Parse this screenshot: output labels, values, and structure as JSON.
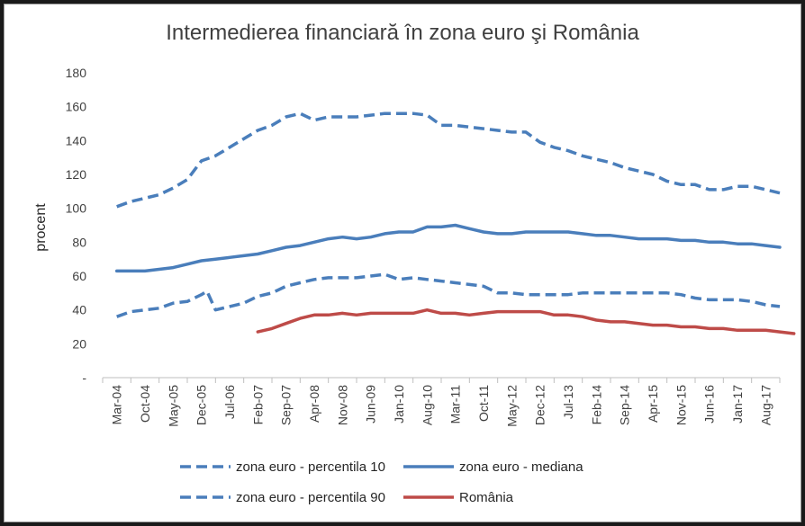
{
  "chart_data": {
    "type": "line",
    "title": "Intermedierea financiară în zona euro şi România",
    "xlabel": "",
    "ylabel": "procent",
    "ylim": [
      0,
      180
    ],
    "yticks": [
      {
        "value": 0,
        "label": "-"
      },
      {
        "value": 20,
        "label": "20"
      },
      {
        "value": 40,
        "label": "40"
      },
      {
        "value": 60,
        "label": "60"
      },
      {
        "value": 80,
        "label": "80"
      },
      {
        "value": 100,
        "label": "100"
      },
      {
        "value": 120,
        "label": "120"
      },
      {
        "value": 140,
        "label": "140"
      },
      {
        "value": 160,
        "label": "160"
      },
      {
        "value": 180,
        "label": "180"
      }
    ],
    "grid": false,
    "legend_position": "bottom",
    "x_labels": [
      {
        "index": 0,
        "label": "Mar-04"
      },
      {
        "index": 1,
        "label": "Oct-04"
      },
      {
        "index": 2,
        "label": "May-05"
      },
      {
        "index": 3,
        "label": "Dec-05"
      },
      {
        "index": 4,
        "label": "Jul-06"
      },
      {
        "index": 5,
        "label": "Feb-07"
      },
      {
        "index": 6,
        "label": "Sep-07"
      },
      {
        "index": 7,
        "label": "Apr-08"
      },
      {
        "index": 8,
        "label": "Nov-08"
      },
      {
        "index": 9,
        "label": "Jun-09"
      },
      {
        "index": 10,
        "label": "Jan-10"
      },
      {
        "index": 11,
        "label": "Aug-10"
      },
      {
        "index": 12,
        "label": "Mar-11"
      },
      {
        "index": 13,
        "label": "Oct-11"
      },
      {
        "index": 14,
        "label": "May-12"
      },
      {
        "index": 15,
        "label": "Dec-12"
      },
      {
        "index": 16,
        "label": "Jul-13"
      },
      {
        "index": 17,
        "label": "Feb-14"
      },
      {
        "index": 18,
        "label": "Sep-14"
      },
      {
        "index": 19,
        "label": "Apr-15"
      },
      {
        "index": 20,
        "label": "Nov-15"
      },
      {
        "index": 21,
        "label": "Jun-16"
      },
      {
        "index": 22,
        "label": "Jan-17"
      },
      {
        "index": 23,
        "label": "Aug-17"
      }
    ],
    "x_range": [
      0,
      24
    ],
    "series": [
      {
        "name": "zona euro - percentila 10",
        "color": "#4a7ebb",
        "dash": "dashed",
        "points": [
          [
            0,
            36
          ],
          [
            0.5,
            39
          ],
          [
            1,
            40
          ],
          [
            1.5,
            41
          ],
          [
            2,
            44
          ],
          [
            2.5,
            45
          ],
          [
            3,
            49
          ],
          [
            3.2,
            51
          ],
          [
            3.5,
            40
          ],
          [
            4,
            42
          ],
          [
            4.5,
            44
          ],
          [
            5,
            48
          ],
          [
            5.5,
            50
          ],
          [
            6,
            54
          ],
          [
            6.5,
            56
          ],
          [
            7,
            58
          ],
          [
            7.5,
            59
          ],
          [
            8,
            59
          ],
          [
            8.5,
            59
          ],
          [
            9,
            60
          ],
          [
            9.5,
            61
          ],
          [
            10,
            58
          ],
          [
            10.5,
            59
          ],
          [
            11,
            58
          ],
          [
            11.5,
            57
          ],
          [
            12,
            56
          ],
          [
            12.5,
            55
          ],
          [
            13,
            54
          ],
          [
            13.5,
            50
          ],
          [
            14,
            50
          ],
          [
            14.5,
            49
          ],
          [
            15,
            49
          ],
          [
            15.5,
            49
          ],
          [
            16,
            49
          ],
          [
            16.5,
            50
          ],
          [
            17,
            50
          ],
          [
            17.5,
            50
          ],
          [
            18,
            50
          ],
          [
            18.5,
            50
          ],
          [
            19,
            50
          ],
          [
            19.5,
            50
          ],
          [
            20,
            49
          ],
          [
            20.5,
            47
          ],
          [
            21,
            46
          ],
          [
            21.5,
            46
          ],
          [
            22,
            46
          ],
          [
            22.5,
            45
          ],
          [
            23,
            43
          ],
          [
            23.5,
            42
          ]
        ]
      },
      {
        "name": "zona euro - mediana",
        "color": "#4a7ebb",
        "dash": "solid",
        "points": [
          [
            0,
            63
          ],
          [
            0.5,
            63
          ],
          [
            1,
            63
          ],
          [
            1.5,
            64
          ],
          [
            2,
            65
          ],
          [
            2.5,
            67
          ],
          [
            3,
            69
          ],
          [
            3.5,
            70
          ],
          [
            4,
            71
          ],
          [
            4.5,
            72
          ],
          [
            5,
            73
          ],
          [
            5.5,
            75
          ],
          [
            6,
            77
          ],
          [
            6.5,
            78
          ],
          [
            7,
            80
          ],
          [
            7.5,
            82
          ],
          [
            8,
            83
          ],
          [
            8.5,
            82
          ],
          [
            9,
            83
          ],
          [
            9.5,
            85
          ],
          [
            10,
            86
          ],
          [
            10.5,
            86
          ],
          [
            11,
            89
          ],
          [
            11.5,
            89
          ],
          [
            12,
            90
          ],
          [
            12.5,
            88
          ],
          [
            13,
            86
          ],
          [
            13.5,
            85
          ],
          [
            14,
            85
          ],
          [
            14.5,
            86
          ],
          [
            15,
            86
          ],
          [
            15.5,
            86
          ],
          [
            16,
            86
          ],
          [
            16.5,
            85
          ],
          [
            17,
            84
          ],
          [
            17.5,
            84
          ],
          [
            18,
            83
          ],
          [
            18.5,
            82
          ],
          [
            19,
            82
          ],
          [
            19.5,
            82
          ],
          [
            20,
            81
          ],
          [
            20.5,
            81
          ],
          [
            21,
            80
          ],
          [
            21.5,
            80
          ],
          [
            22,
            79
          ],
          [
            22.5,
            79
          ],
          [
            23,
            78
          ],
          [
            23.5,
            77
          ]
        ]
      },
      {
        "name": "zona euro - percentila 90",
        "color": "#4a7ebb",
        "dash": "dashed",
        "points": [
          [
            0,
            101
          ],
          [
            0.5,
            104
          ],
          [
            1,
            106
          ],
          [
            1.5,
            108
          ],
          [
            2,
            112
          ],
          [
            2.5,
            117
          ],
          [
            3,
            128
          ],
          [
            3.5,
            131
          ],
          [
            4,
            136
          ],
          [
            4.5,
            141
          ],
          [
            5,
            146
          ],
          [
            5.5,
            149
          ],
          [
            6,
            154
          ],
          [
            6.5,
            156
          ],
          [
            7,
            152
          ],
          [
            7.5,
            154
          ],
          [
            8,
            154
          ],
          [
            8.5,
            154
          ],
          [
            9,
            155
          ],
          [
            9.5,
            156
          ],
          [
            10,
            156
          ],
          [
            10.5,
            156
          ],
          [
            11,
            155
          ],
          [
            11.5,
            149
          ],
          [
            12,
            149
          ],
          [
            12.5,
            148
          ],
          [
            13,
            147
          ],
          [
            13.5,
            146
          ],
          [
            14,
            145
          ],
          [
            14.5,
            145
          ],
          [
            15,
            139
          ],
          [
            15.5,
            136
          ],
          [
            16,
            134
          ],
          [
            16.5,
            131
          ],
          [
            17,
            129
          ],
          [
            17.5,
            127
          ],
          [
            18,
            124
          ],
          [
            18.5,
            122
          ],
          [
            19,
            120
          ],
          [
            19.5,
            116
          ],
          [
            20,
            114
          ],
          [
            20.5,
            114
          ],
          [
            21,
            111
          ],
          [
            21.5,
            111
          ],
          [
            22,
            113
          ],
          [
            22.5,
            113
          ],
          [
            23,
            111
          ],
          [
            23.5,
            109
          ]
        ]
      },
      {
        "name": "România",
        "color": "#be4b48",
        "dash": "solid",
        "points": [
          [
            5,
            27
          ],
          [
            5.5,
            29
          ],
          [
            6,
            32
          ],
          [
            6.5,
            35
          ],
          [
            7,
            37
          ],
          [
            7.5,
            37
          ],
          [
            8,
            38
          ],
          [
            8.5,
            37
          ],
          [
            9,
            38
          ],
          [
            9.5,
            38
          ],
          [
            10,
            38
          ],
          [
            10.5,
            38
          ],
          [
            11,
            40
          ],
          [
            11.5,
            38
          ],
          [
            12,
            38
          ],
          [
            12.5,
            37
          ],
          [
            13,
            38
          ],
          [
            13.5,
            39
          ],
          [
            14,
            39
          ],
          [
            14.5,
            39
          ],
          [
            15,
            39
          ],
          [
            15.5,
            37
          ],
          [
            16,
            37
          ],
          [
            16.5,
            36
          ],
          [
            17,
            34
          ],
          [
            17.5,
            33
          ],
          [
            18,
            33
          ],
          [
            18.5,
            32
          ],
          [
            19,
            31
          ],
          [
            19.5,
            31
          ],
          [
            20,
            30
          ],
          [
            20.5,
            30
          ],
          [
            21,
            29
          ],
          [
            21.5,
            29
          ],
          [
            22,
            28
          ],
          [
            22.5,
            28
          ],
          [
            23,
            28
          ],
          [
            23.5,
            27
          ],
          [
            24,
            26
          ]
        ]
      }
    ]
  }
}
